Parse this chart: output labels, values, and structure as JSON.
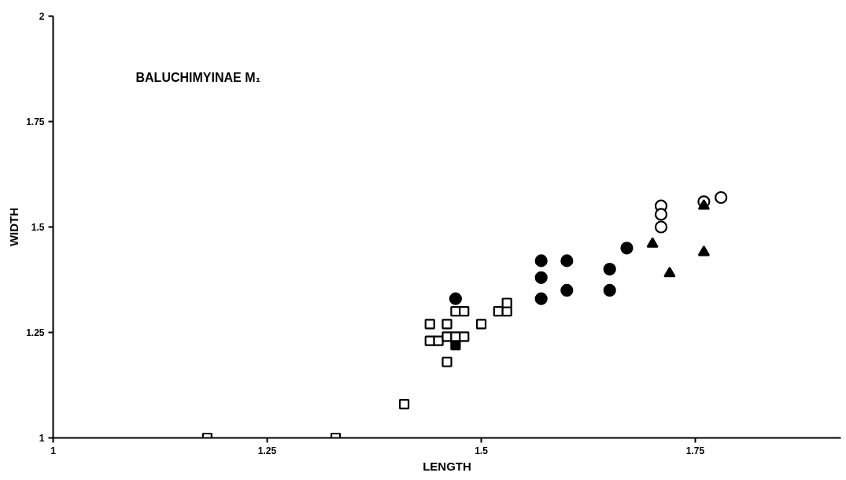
{
  "chart_data": {
    "type": "scatter",
    "xlabel": "LENGTH",
    "ylabel": "WIDTH",
    "annotations": [
      "BALUCHIMYINAE M₁"
    ],
    "xlim": [
      1,
      1.92
    ],
    "xticks": [
      1,
      1.25,
      1.5,
      1.75
    ],
    "ylim": [
      1,
      2
    ],
    "yticks": [
      1,
      1.25,
      1.5,
      1.75,
      2
    ],
    "grid": false,
    "series": [
      {
        "color": "#000000",
        "marker": "square",
        "x": [
          1.47
        ],
        "values": [
          1.22
        ]
      },
      {
        "color": "#ffffff",
        "marker": "square",
        "x": [
          1.18,
          1.33,
          1.41,
          1.44,
          1.44,
          1.45,
          1.46,
          1.46,
          1.46,
          1.47,
          1.48,
          1.47,
          1.48,
          1.5,
          1.52,
          1.53,
          1.53
        ],
        "values": [
          1.0,
          1.0,
          1.08,
          1.27,
          1.23,
          1.23,
          1.18,
          1.27,
          1.24,
          1.24,
          1.24,
          1.3,
          1.3,
          1.27,
          1.3,
          1.3,
          1.32
        ]
      },
      {
        "color": "#000000",
        "marker": "circle",
        "x": [
          1.47,
          1.57,
          1.57,
          1.57,
          1.6,
          1.6,
          1.65,
          1.65,
          1.67
        ],
        "values": [
          1.33,
          1.42,
          1.38,
          1.33,
          1.42,
          1.35,
          1.4,
          1.35,
          1.45
        ]
      },
      {
        "color": "#ffffff",
        "marker": "circle",
        "x": [
          1.71,
          1.71,
          1.71,
          1.76,
          1.78
        ],
        "values": [
          1.55,
          1.53,
          1.5,
          1.56,
          1.57
        ]
      },
      {
        "color": "#000000",
        "marker": "triangle",
        "x": [
          1.7,
          1.72,
          1.76,
          1.76
        ],
        "values": [
          1.46,
          1.39,
          1.55,
          1.44
        ]
      }
    ]
  }
}
